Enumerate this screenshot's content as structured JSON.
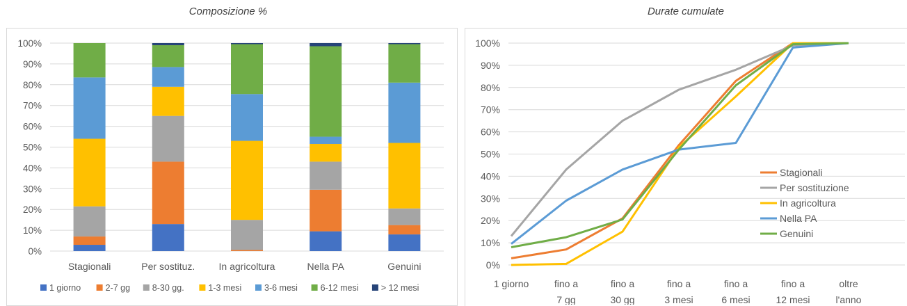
{
  "chart_data": [
    {
      "type": "bar",
      "stacked": true,
      "title": "Composizione %",
      "categories": [
        "Stagionali",
        "Per sostituz.",
        "In agricoltura",
        "Nella PA",
        "Genuini"
      ],
      "ylim": [
        0,
        100
      ],
      "yticks": [
        "0%",
        "10%",
        "20%",
        "30%",
        "40%",
        "50%",
        "60%",
        "70%",
        "80%",
        "90%",
        "100%"
      ],
      "grid": true,
      "legend": "bottom",
      "series": [
        {
          "name": "1 giorno",
          "color": "#4472C4",
          "values": [
            3,
            13,
            0,
            9.5,
            8
          ]
        },
        {
          "name": "2-7 gg",
          "color": "#ED7D31",
          "values": [
            4,
            30,
            0.5,
            20,
            4.5
          ]
        },
        {
          "name": "8-30 gg.",
          "color": "#A5A5A5",
          "values": [
            14.5,
            22,
            14.5,
            13.5,
            8
          ]
        },
        {
          "name": "1-3 mesi",
          "color": "#FFC000",
          "values": [
            32.5,
            14,
            38,
            8.5,
            31.5
          ]
        },
        {
          "name": "3-6 mesi",
          "color": "#5B9BD5",
          "values": [
            29.5,
            9.5,
            22.5,
            3.5,
            29
          ]
        },
        {
          "name": "6-12 mesi",
          "color": "#70AD47",
          "values": [
            16.5,
            10.5,
            24,
            43.5,
            18.5
          ]
        },
        {
          "name": "> 12 mesi",
          "color": "#264478",
          "values": [
            0,
            1,
            0.5,
            1.5,
            0.5
          ]
        }
      ]
    },
    {
      "type": "line",
      "title": "Durate cumulate",
      "categories": [
        [
          "1 giorno"
        ],
        [
          "fino a",
          "7 gg"
        ],
        [
          "fino a",
          "30 gg"
        ],
        [
          "fino a",
          "3 mesi"
        ],
        [
          "fino a",
          "6 mesi"
        ],
        [
          "fino a",
          "12 mesi"
        ],
        [
          "oltre",
          "l'anno"
        ]
      ],
      "ylim": [
        0,
        100
      ],
      "yticks": [
        "0%",
        "10%",
        "20%",
        "30%",
        "40%",
        "50%",
        "60%",
        "70%",
        "80%",
        "90%",
        "100%"
      ],
      "grid": true,
      "legend": "right",
      "series": [
        {
          "name": "Stagionali",
          "color": "#ED7D31",
          "values": [
            3,
            7,
            21,
            54,
            83,
            100,
            100
          ]
        },
        {
          "name": "Per sostituzione",
          "color": "#A5A5A5",
          "values": [
            13,
            43,
            65,
            79,
            88,
            99,
            100
          ]
        },
        {
          "name": "In agricoltura",
          "color": "#FFC000",
          "values": [
            0,
            0.5,
            15,
            53,
            76,
            100,
            100
          ]
        },
        {
          "name": "Nella PA",
          "color": "#5B9BD5",
          "values": [
            9.5,
            29,
            43,
            52,
            55,
            98,
            100
          ]
        },
        {
          "name": "Genuini",
          "color": "#70AD47",
          "values": [
            8,
            12.5,
            20.5,
            52,
            81,
            99.5,
            100
          ]
        }
      ]
    }
  ]
}
